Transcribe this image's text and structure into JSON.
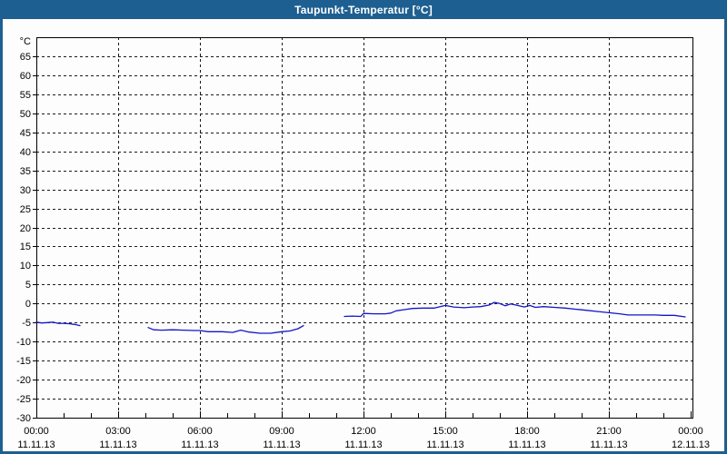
{
  "window": {
    "title": "Taupunkt-Temperatur [°C]"
  },
  "colors": {
    "titlebar_bg": "#1e5f91",
    "titlebar_text": "#ffffff",
    "window_border": "#1e5f91",
    "background": "#fdfdfd",
    "plot_border": "#000000",
    "grid": "#1a1a1a",
    "label": "#000000",
    "line": "#1414c8"
  },
  "chart_data": {
    "type": "line",
    "title": "Taupunkt-Temperatur [°C]",
    "ylabel": "°C",
    "unit_label": "°C",
    "ylim": [
      -30,
      70
    ],
    "yticks": [
      65,
      60,
      55,
      50,
      45,
      40,
      35,
      30,
      25,
      20,
      15,
      10,
      5,
      0,
      -5,
      -10,
      -15,
      -20,
      -25,
      -30
    ],
    "xlim_hours": [
      0,
      24.07
    ],
    "x_minor_tick_interval_hours": 1,
    "grid": true,
    "legend": "none",
    "x_major_ticks": [
      {
        "hour": 0,
        "time": "00:00",
        "date": "11.11.13"
      },
      {
        "hour": 3,
        "time": "03:00",
        "date": "11.11.13"
      },
      {
        "hour": 6,
        "time": "06:00",
        "date": "11.11.13"
      },
      {
        "hour": 9,
        "time": "09:00",
        "date": "11.11.13"
      },
      {
        "hour": 12,
        "time": "12:00",
        "date": "11.11.13"
      },
      {
        "hour": 15,
        "time": "15:00",
        "date": "11.11.13"
      },
      {
        "hour": 18,
        "time": "18:00",
        "date": "11.11.13"
      },
      {
        "hour": 21,
        "time": "21:00",
        "date": "11.11.13"
      },
      {
        "hour": 24,
        "time": "00:00",
        "date": "12.11.13"
      }
    ],
    "series": [
      {
        "name": "Taupunkt",
        "color": "#1414c8",
        "unit": "°C",
        "segments": [
          [
            [
              0.0,
              -4.9
            ],
            [
              0.2,
              -5.1
            ],
            [
              0.4,
              -5.0
            ],
            [
              0.6,
              -4.9
            ],
            [
              0.8,
              -5.2
            ],
            [
              1.0,
              -5.2
            ],
            [
              1.2,
              -5.3
            ],
            [
              1.4,
              -5.5
            ],
            [
              1.6,
              -5.8
            ]
          ],
          [
            [
              4.1,
              -6.3
            ],
            [
              4.3,
              -6.9
            ],
            [
              4.6,
              -7.0
            ],
            [
              5.0,
              -6.9
            ],
            [
              5.4,
              -7.0
            ],
            [
              5.8,
              -7.1
            ],
            [
              6.0,
              -7.1
            ],
            [
              6.3,
              -7.4
            ],
            [
              6.8,
              -7.4
            ],
            [
              7.2,
              -7.6
            ],
            [
              7.5,
              -7.0
            ],
            [
              7.8,
              -7.5
            ],
            [
              8.2,
              -7.8
            ],
            [
              8.6,
              -7.8
            ],
            [
              9.0,
              -7.4
            ],
            [
              9.3,
              -7.2
            ],
            [
              9.6,
              -6.6
            ],
            [
              9.8,
              -5.8
            ]
          ],
          [
            [
              11.3,
              -3.4
            ],
            [
              11.6,
              -3.3
            ],
            [
              11.9,
              -3.4
            ],
            [
              12.0,
              -2.6
            ],
            [
              12.4,
              -2.7
            ],
            [
              12.8,
              -2.7
            ],
            [
              13.0,
              -2.5
            ],
            [
              13.2,
              -1.9
            ],
            [
              13.5,
              -1.6
            ],
            [
              13.8,
              -1.3
            ],
            [
              14.2,
              -1.2
            ],
            [
              14.6,
              -1.2
            ],
            [
              15.0,
              -0.5
            ],
            [
              15.3,
              -0.9
            ],
            [
              15.7,
              -1.1
            ],
            [
              16.0,
              -0.9
            ],
            [
              16.3,
              -0.8
            ],
            [
              16.6,
              -0.4
            ],
            [
              16.8,
              0.3
            ],
            [
              17.0,
              0.0
            ],
            [
              17.2,
              -0.6
            ],
            [
              17.4,
              -0.1
            ],
            [
              17.6,
              -0.4
            ],
            [
              17.9,
              -0.9
            ],
            [
              18.1,
              -0.5
            ],
            [
              18.3,
              -1.0
            ],
            [
              18.6,
              -0.8
            ],
            [
              19.0,
              -1.0
            ],
            [
              19.4,
              -1.2
            ],
            [
              19.8,
              -1.5
            ],
            [
              20.2,
              -1.8
            ],
            [
              20.6,
              -2.1
            ],
            [
              21.0,
              -2.4
            ],
            [
              21.4,
              -2.7
            ],
            [
              21.7,
              -3.0
            ],
            [
              22.0,
              -3.0
            ],
            [
              22.4,
              -3.0
            ],
            [
              22.7,
              -3.0
            ],
            [
              23.0,
              -3.1
            ],
            [
              23.4,
              -3.1
            ],
            [
              23.8,
              -3.5
            ]
          ]
        ]
      }
    ]
  }
}
